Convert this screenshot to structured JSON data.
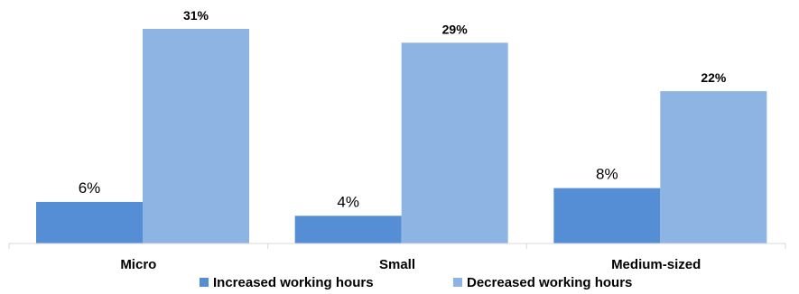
{
  "chart_data": {
    "type": "bar",
    "categories": [
      "Micro",
      "Small",
      "Medium-sized"
    ],
    "series": [
      {
        "name": "Increased working hours",
        "values": [
          6,
          4,
          8
        ],
        "labels": [
          "6%",
          "4%",
          "8%"
        ],
        "color": "#558ED5"
      },
      {
        "name": "Decreased working hours",
        "values": [
          31,
          29,
          22
        ],
        "labels": [
          "31%",
          "29%",
          "22%"
        ],
        "color": "#8EB4E3"
      }
    ],
    "ylim": [
      0,
      33
    ],
    "grid": false,
    "legend_position": "bottom",
    "axis_color": "#D9D9D9"
  }
}
